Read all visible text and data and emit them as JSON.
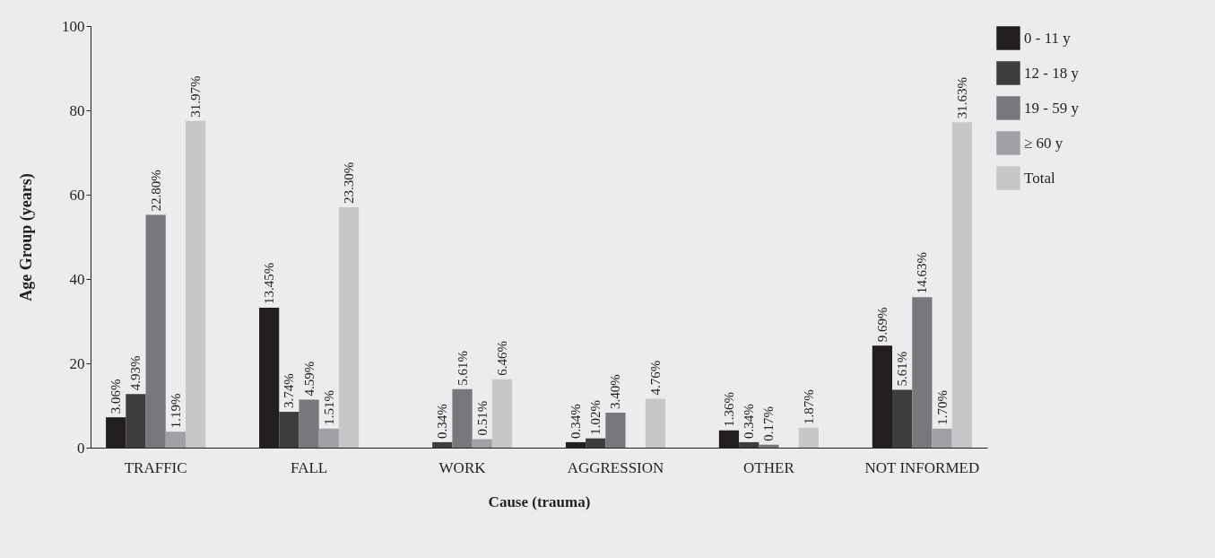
{
  "chart_data": {
    "type": "bar",
    "xlabel": "Cause (trauma)",
    "ylabel": "Age Group (years)",
    "categories": [
      "TRAFFIC",
      "FALL",
      "WORK",
      "AGGRESSION",
      "OTHER",
      "NOT INFORMED"
    ],
    "series": [
      {
        "name": "0 - 11 y",
        "color": "#231f20",
        "values": [
          7.2,
          33.2,
          null,
          1.3,
          4.1,
          24.2
        ]
      },
      {
        "name": "12 - 18 y",
        "color": "#3d3d3e",
        "values": [
          12.7,
          8.5,
          1.3,
          2.2,
          1.3,
          13.7
        ]
      },
      {
        "name": "19 - 59 y",
        "color": "#77787b",
        "values": [
          55.2,
          11.4,
          13.9,
          8.3,
          0.7,
          35.7
        ]
      },
      {
        "name": "≥ 60 y",
        "color": "#a0a1a4",
        "values": [
          3.8,
          4.5,
          2.0,
          null,
          null,
          4.5
        ]
      },
      {
        "name": "Total",
        "color": "#c6c7c8",
        "values": [
          77.5,
          57.0,
          16.2,
          11.6,
          4.7,
          77.2
        ]
      }
    ],
    "annotations": [
      "3.06%",
      "4.93%",
      "22.80%",
      "1.19%",
      "31.97%",
      "13.45%",
      "3.74%",
      "4.59%",
      "1.51%",
      "23.30%",
      "0.34%",
      "5.61%",
      "0.51%",
      "6.46%",
      "0.34%",
      "1.02%",
      "3.40%",
      "4.76%",
      "1.36%",
      "0.34%",
      "0.17%",
      "1.87%",
      "9.69%",
      "5.61%",
      "14.63%",
      "1.70%",
      "31.63%"
    ],
    "ylim": [
      0,
      100
    ],
    "yticks": [
      0,
      20,
      40,
      60,
      80,
      100
    ],
    "grid": false,
    "legend": "right"
  }
}
